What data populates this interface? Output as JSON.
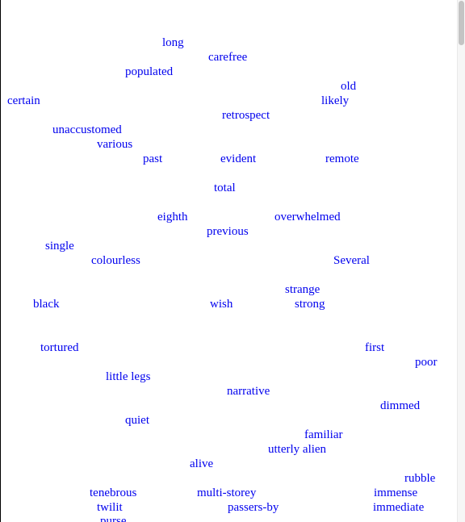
{
  "theme": {
    "link_color": "#0000ee"
  },
  "words": [
    "long",
    "carefree",
    "populated",
    "old",
    "certain",
    "likely",
    "retrospect",
    "unaccustomed",
    "various",
    "past",
    "evident",
    "remote",
    "total",
    "eighth",
    "overwhelmed",
    "previous",
    "single",
    "colourless",
    "Several",
    "strange",
    "black",
    "wish",
    "strong",
    "tortured",
    "first",
    "poor",
    "little legs",
    "narrative",
    "dimmed",
    "quiet",
    "familiar",
    "utterly alien",
    "alive",
    "rubble",
    "tenebrous",
    "multi-storey",
    "immense",
    "twilit",
    "passers-by",
    "immediate",
    "purse"
  ]
}
